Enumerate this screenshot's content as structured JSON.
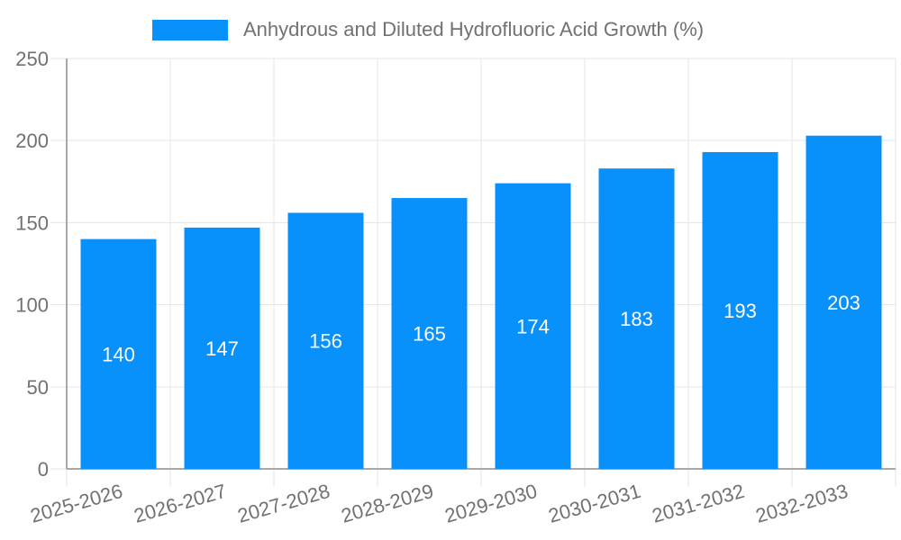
{
  "chart_data": {
    "type": "bar",
    "legend_label": "Anhydrous and Diluted Hydrofluoric Acid Growth (%)",
    "legend_position": "top-center",
    "categories": [
      "2025-2026",
      "2026-2027",
      "2027-2028",
      "2028-2029",
      "2029-2030",
      "2030-2031",
      "2031-2032",
      "2032-2033"
    ],
    "values": [
      140,
      147,
      156,
      165,
      174,
      183,
      193,
      203
    ],
    "ylim": [
      0,
      250
    ],
    "yticks": [
      0,
      50,
      100,
      150,
      200,
      250
    ],
    "grid": true,
    "x_label_rotation_deg": -16,
    "colors": {
      "bar": "#0890FB",
      "value_label": "#FFFFFF",
      "grid": "#E6E6E6",
      "tick": "#DCDCDC",
      "axis": "#A8A8A8",
      "text": "#717171"
    }
  }
}
